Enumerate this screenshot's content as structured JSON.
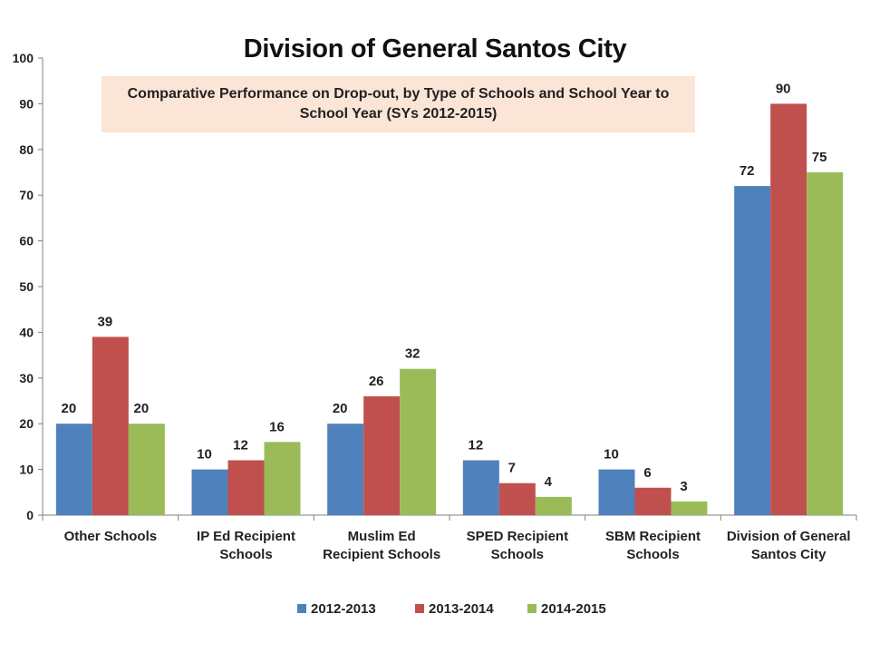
{
  "chart_data": {
    "type": "bar",
    "title": "Division of General Santos City",
    "subtitle": "Comparative Performance on Drop-out, by Type of Schools and School Year to School Year (SYs 2012-2015)",
    "categories": [
      [
        "Other Schools"
      ],
      [
        "IP Ed Recipient",
        "Schools"
      ],
      [
        "Muslim Ed",
        "Recipient Schools"
      ],
      [
        "SPED Recipient",
        "Schools"
      ],
      [
        "SBM Recipient",
        "Schools"
      ],
      [
        "Division of General",
        "Santos City"
      ]
    ],
    "series": [
      {
        "name": "2012-2013",
        "color": "#4f81bd",
        "values": [
          20,
          10,
          20,
          12,
          10,
          72
        ]
      },
      {
        "name": "2013-2014",
        "color": "#c0504d",
        "values": [
          39,
          12,
          26,
          7,
          6,
          90
        ]
      },
      {
        "name": "2014-2015",
        "color": "#9bbb59",
        "values": [
          20,
          16,
          32,
          4,
          3,
          75
        ]
      }
    ],
    "ylim": [
      0,
      100
    ],
    "yticks": [
      0,
      10,
      20,
      30,
      40,
      50,
      60,
      70,
      80,
      90,
      100
    ],
    "grid": false,
    "legend_position": "bottom",
    "data_labels": true
  }
}
